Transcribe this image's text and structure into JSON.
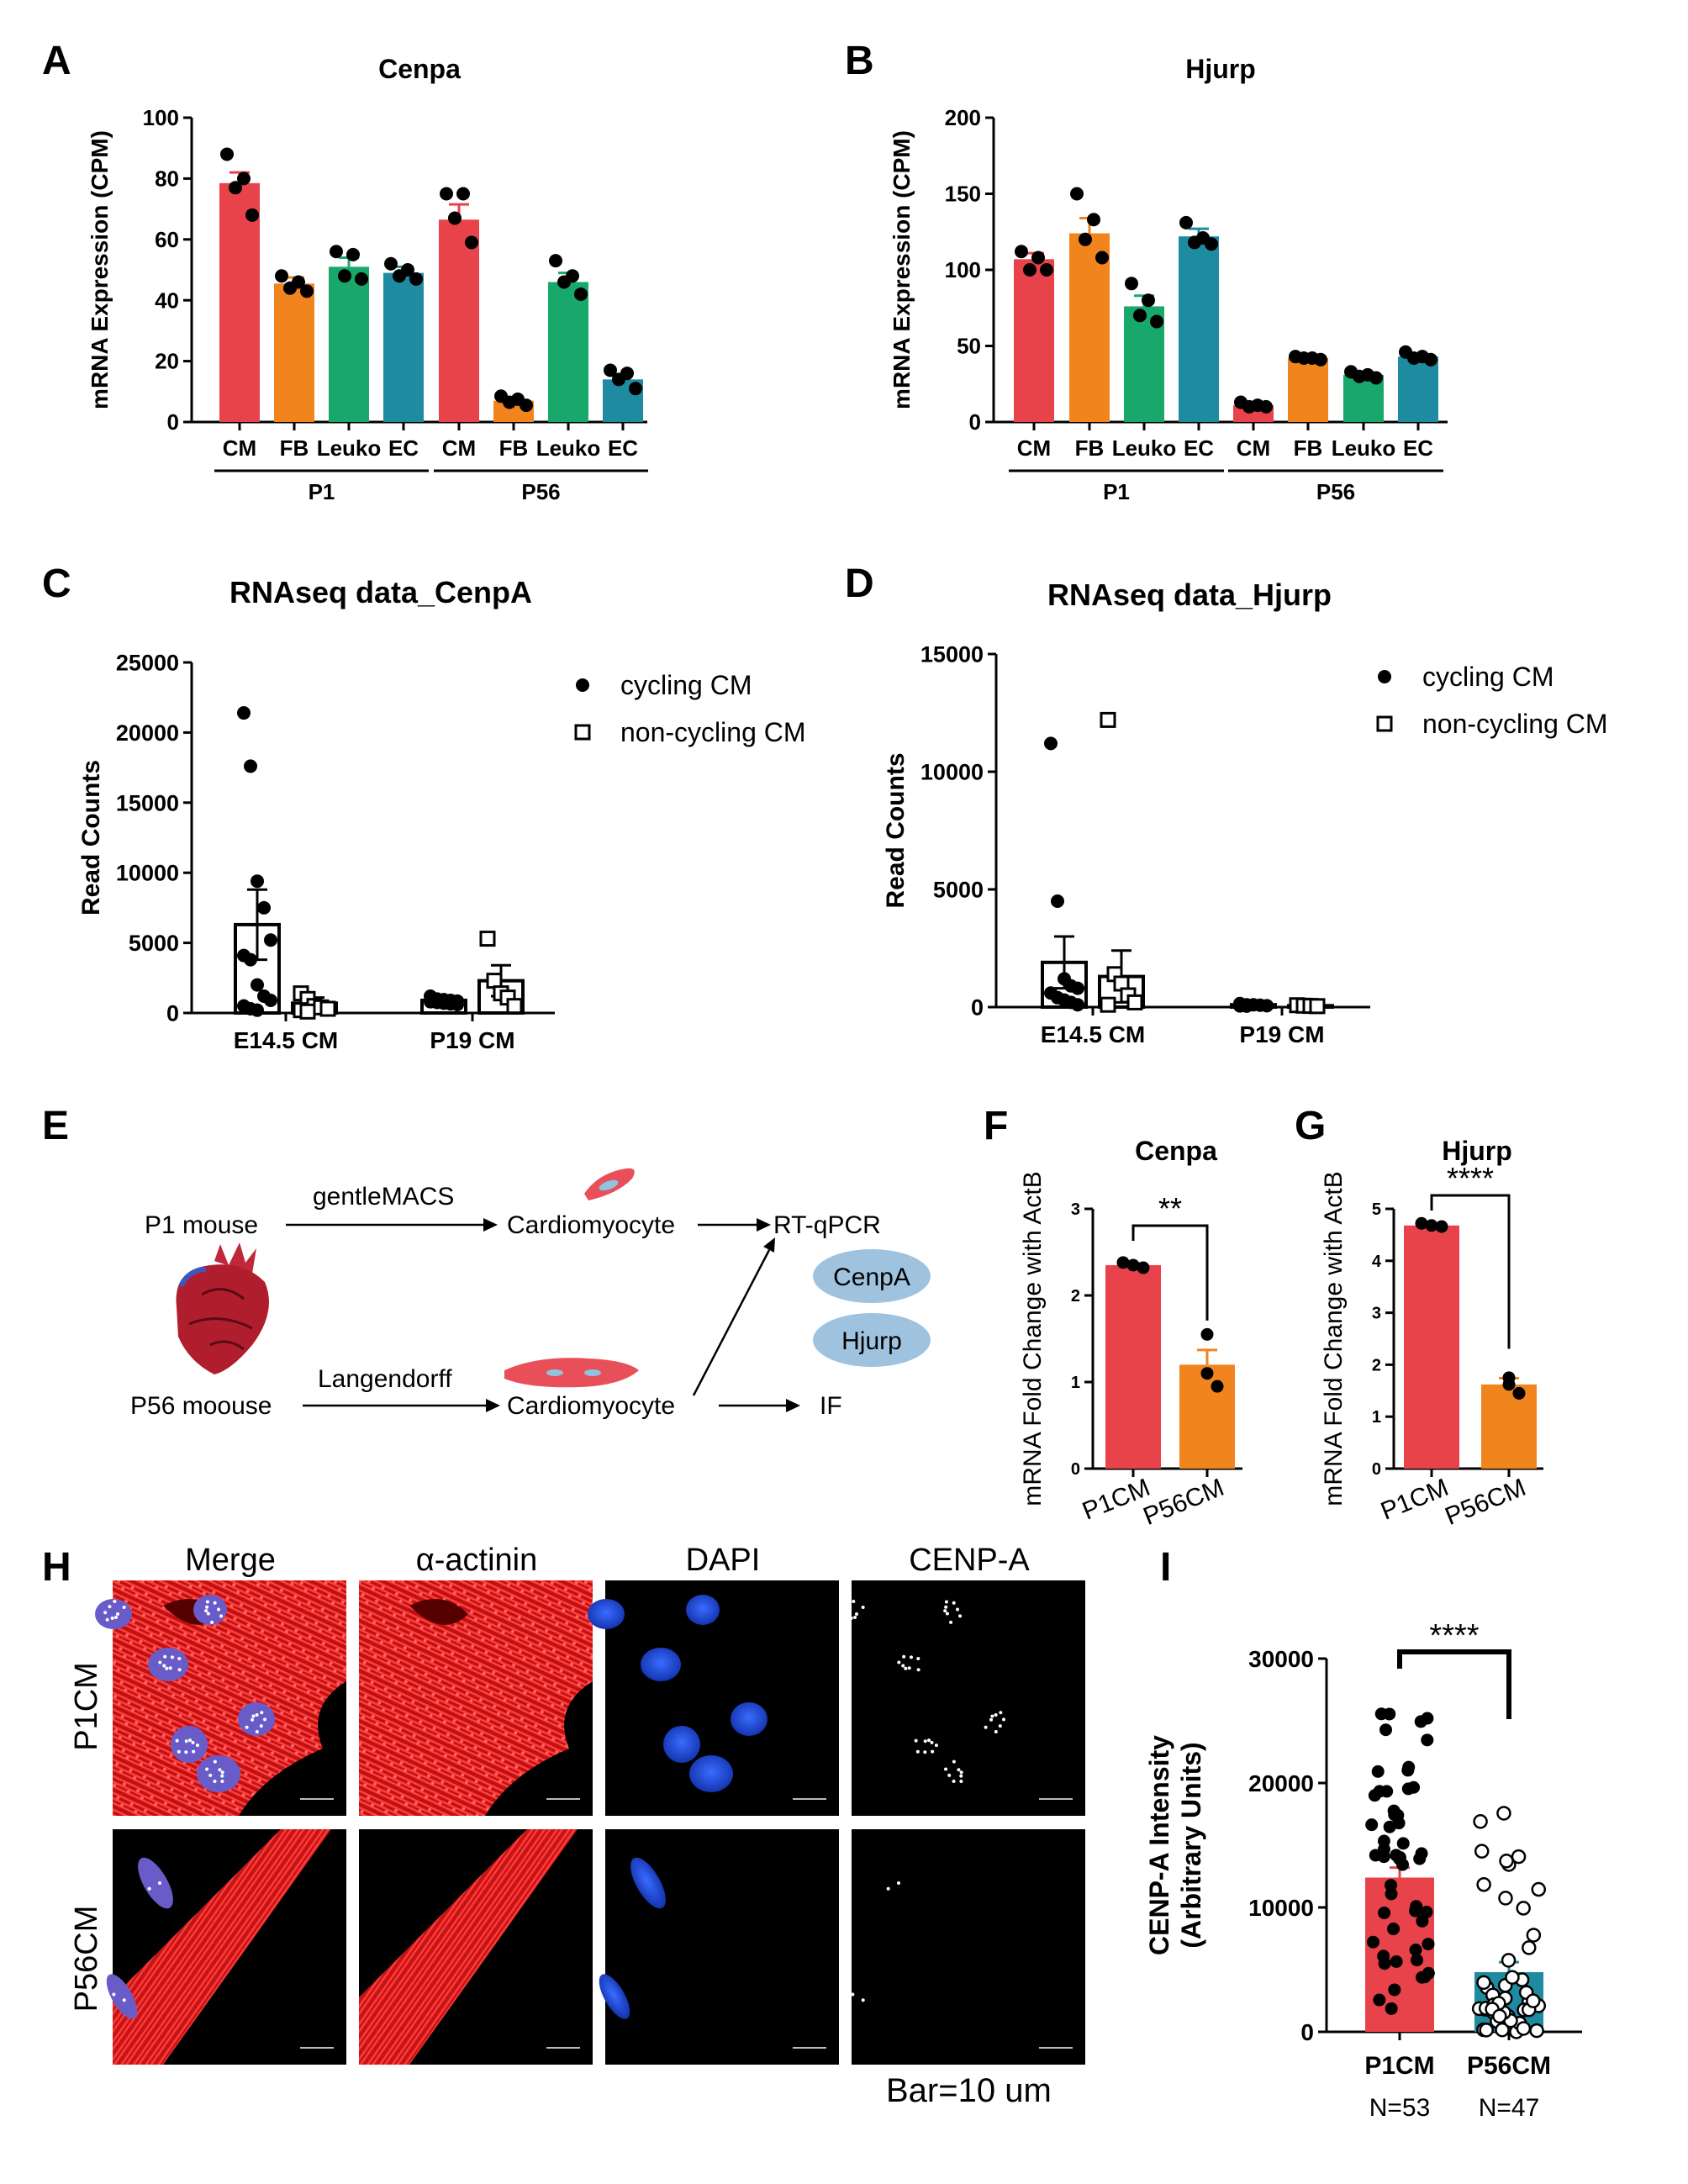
{
  "panel_letters": [
    "A",
    "B",
    "C",
    "D",
    "E",
    "F",
    "G",
    "H",
    "I"
  ],
  "colors": {
    "CM": "#e8434a",
    "FB": "#f2841e",
    "Leuko": "#18a86b",
    "EC": "#1f8ba0",
    "P1CM": "#e8434a",
    "P56CM_F": "#f2841e",
    "P56CM_I": "#1f8ba0",
    "ellipse": "#9fc3df"
  },
  "chart_data": [
    {
      "panel": "A",
      "type": "bar",
      "title": "Cenpa",
      "ylabel": "mRNA Expression (CPM)",
      "ylim": [
        0,
        100
      ],
      "yticks": [
        "0",
        "20",
        "40",
        "60",
        "80",
        "100"
      ],
      "categories": [
        "CM",
        "FB",
        "Leuko",
        "EC",
        "CM",
        "FB",
        "Leuko",
        "EC"
      ],
      "groups": [
        {
          "name": "P1",
          "from": 0,
          "to": 3
        },
        {
          "name": "P56",
          "from": 4,
          "to": 7
        }
      ],
      "values": [
        78.5,
        45.5,
        51,
        49,
        66.5,
        7,
        46,
        14
      ],
      "errors": [
        3.5,
        2,
        3,
        2,
        5,
        1,
        3,
        1.5
      ],
      "points": [
        [
          88,
          80,
          77,
          68
        ],
        [
          48,
          46,
          44,
          43
        ],
        [
          56,
          55,
          48,
          47
        ],
        [
          52,
          50,
          48,
          47
        ],
        [
          75,
          75,
          67,
          59
        ],
        [
          8.5,
          7.5,
          6.5,
          5.5
        ],
        [
          53,
          48,
          46,
          42
        ],
        [
          17,
          16,
          14,
          11
        ]
      ],
      "colors": [
        "CM",
        "FB",
        "Leuko",
        "EC",
        "CM",
        "FB",
        "Leuko",
        "EC"
      ]
    },
    {
      "panel": "B",
      "type": "bar",
      "title": "Hjurp",
      "ylabel": "mRNA Expression (CPM)",
      "ylim": [
        0,
        200
      ],
      "yticks": [
        "0",
        "50",
        "100",
        "150",
        "200"
      ],
      "categories": [
        "CM",
        "FB",
        "Leuko",
        "EC",
        "CM",
        "FB",
        "Leuko",
        "EC"
      ],
      "groups": [
        {
          "name": "P1",
          "from": 0,
          "to": 3
        },
        {
          "name": "P56",
          "from": 4,
          "to": 7
        }
      ],
      "values": [
        107,
        124,
        76,
        122,
        11,
        42,
        31,
        43
      ],
      "errors": [
        4,
        10,
        7,
        5,
        1.5,
        1,
        1.5,
        1.5
      ],
      "points": [
        [
          112,
          108,
          100,
          100
        ],
        [
          150,
          133,
          120,
          108
        ],
        [
          91,
          80,
          70,
          66
        ],
        [
          131,
          121,
          118,
          117
        ],
        [
          13,
          11,
          10,
          10
        ],
        [
          43,
          42,
          42,
          41
        ],
        [
          33,
          31,
          30,
          29
        ],
        [
          46,
          43,
          42,
          41
        ]
      ],
      "colors": [
        "CM",
        "FB",
        "Leuko",
        "EC",
        "CM",
        "FB",
        "Leuko",
        "EC"
      ]
    },
    {
      "panel": "C",
      "type": "scatter",
      "title": "RNAseq data_CenpA",
      "ylabel": "Read Counts",
      "ylim": [
        0,
        25000
      ],
      "yticks": [
        "0",
        "5000",
        "10000",
        "15000",
        "20000",
        "25000"
      ],
      "categories": [
        "E14.5 CM",
        "P19 CM"
      ],
      "legend": [
        "cycling CM",
        "non-cycling CM"
      ],
      "series": [
        {
          "name": "cycling CM",
          "values": [
            6300,
            900
          ],
          "errors": [
            2500,
            150
          ],
          "points": [
            [
              21400,
              17600,
              9400,
              7500,
              5200,
              4100,
              3800,
              2000,
              1200,
              900,
              500,
              300,
              200
            ],
            [
              1200,
              1000,
              950,
              900,
              850,
              800,
              750,
              700,
              650,
              600
            ]
          ]
        },
        {
          "name": "non-cycling CM",
          "values": [
            700,
            2300
          ],
          "errors": [
            400,
            1100
          ],
          "points": [
            [
              1400,
              1000,
              500,
              400,
              300,
              200,
              100
            ],
            [
              5300,
              2300,
              1400,
              1100,
              500
            ]
          ]
        }
      ]
    },
    {
      "panel": "D",
      "type": "scatter",
      "title": "RNAseq data_Hjurp",
      "ylabel": "Read Counts",
      "ylim": [
        0,
        15000
      ],
      "yticks": [
        "0",
        "5000",
        "10000",
        "15000"
      ],
      "categories": [
        "E14.5 CM",
        "P19 CM"
      ],
      "legend": [
        "cycling CM",
        "non-cycling CM"
      ],
      "series": [
        {
          "name": "cycling CM",
          "values": [
            1900,
            100
          ],
          "errors": [
            1100,
            30
          ],
          "points": [
            [
              11200,
              4500,
              1200,
              900,
              800,
              600,
              400,
              300,
              200,
              100
            ],
            [
              150,
              100,
              100,
              80,
              60,
              50,
              40
            ]
          ]
        },
        {
          "name": "non-cycling CM",
          "values": [
            1300,
            60
          ],
          "errors": [
            1100,
            20
          ],
          "points": [
            [
              12200,
              1400,
              1000,
              500,
              200,
              100
            ],
            [
              80,
              60,
              50,
              40
            ]
          ]
        }
      ]
    },
    {
      "panel": "F",
      "type": "bar",
      "title": "Cenpa",
      "ylabel": "mRNA Fold Change with ActB",
      "ylim": [
        0,
        3
      ],
      "yticks": [
        "0",
        "1",
        "2",
        "3"
      ],
      "categories": [
        "P1CM",
        "P56CM"
      ],
      "values": [
        2.35,
        1.2
      ],
      "errors": [
        0.02,
        0.17
      ],
      "points": [
        [
          2.38,
          2.35,
          2.32
        ],
        [
          1.55,
          1.1,
          0.95
        ]
      ],
      "colors": [
        "P1CM",
        "P56CM_F"
      ],
      "significance": "**"
    },
    {
      "panel": "G",
      "type": "bar",
      "title": "Hjurp",
      "ylabel": "mRNA Fold Change with ActB",
      "ylim": [
        0,
        5
      ],
      "yticks": [
        "0",
        "1",
        "2",
        "3",
        "4",
        "5"
      ],
      "categories": [
        "P1CM",
        "P56CM"
      ],
      "values": [
        4.68,
        1.62
      ],
      "errors": [
        0.02,
        0.12
      ],
      "points": [
        [
          4.72,
          4.68,
          4.66
        ],
        [
          1.75,
          1.62,
          1.45
        ]
      ],
      "colors": [
        "P1CM",
        "P56CM_F"
      ],
      "significance": "****"
    },
    {
      "panel": "I",
      "type": "bar",
      "ylabel_lines": [
        "CENP-A Intensity",
        "(Arbitrary Units)"
      ],
      "ylim": [
        0,
        30000
      ],
      "yticks": [
        "0",
        "10000",
        "20000",
        "30000"
      ],
      "categories": [
        "P1CM",
        "P56CM"
      ],
      "counts": [
        "N=53",
        "N=47"
      ],
      "values": [
        12400,
        4800
      ],
      "errors": [
        800,
        800
      ],
      "colors": [
        "P1CM",
        "P56CM_I"
      ],
      "significance": "****"
    }
  ],
  "panel_e": {
    "p1_label": "P1 mouse",
    "p56_label": "P56 moouse",
    "method_top": "gentleMACS",
    "method_bottom": "Langendorff",
    "cm_top": "Cardiomyocyte",
    "cm_bottom": "Cardiomyocyte",
    "rtqpcr": "RT-qPCR",
    "if_label": "IF",
    "genes": [
      "CenpA",
      "Hjurp"
    ]
  },
  "panel_h": {
    "columns": [
      "Merge",
      "α-actinin",
      "DAPI",
      "CENP-A"
    ],
    "rows": [
      "P1CM",
      "P56CM"
    ],
    "scale_bar": "Bar=10 um"
  }
}
